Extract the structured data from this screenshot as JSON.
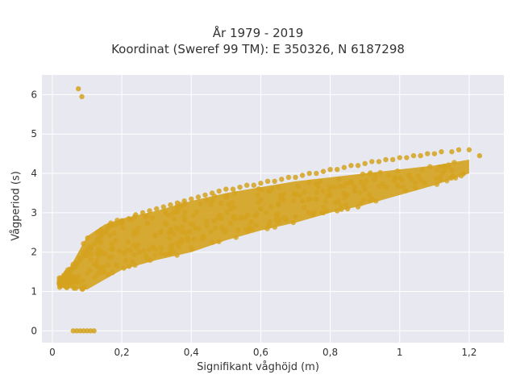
{
  "chart_data": {
    "type": "scatter",
    "title_line1": "År 1979 - 2019",
    "title_line2": "Koordinat (Sweref 99 TM): E 350326, N 6187298",
    "xlabel": "Signifikant våghöjd (m)",
    "ylabel": "Vågperiod (s)",
    "xlim": [
      -0.03,
      1.3
    ],
    "ylim": [
      -0.3,
      6.5
    ],
    "x_ticks": [
      0,
      0.2,
      0.4,
      0.6,
      0.8,
      1,
      1.2
    ],
    "x_tick_labels": [
      "0",
      "0,2",
      "0,4",
      "0,6",
      "0,8",
      "1",
      "1,2"
    ],
    "y_ticks": [
      0,
      1,
      2,
      3,
      4,
      5,
      6
    ],
    "y_tick_labels": [
      "0",
      "1",
      "2",
      "3",
      "4",
      "5",
      "6"
    ],
    "grid": true,
    "marker_color": "#d4a21e",
    "plot_background": "#e8e8f0",
    "series": [
      {
        "x": [
          0.075,
          0.085,
          0.06,
          0.07,
          0.08,
          0.09,
          0.1,
          0.11,
          0.12,
          0.02,
          0.03,
          0.04,
          0.05,
          0.06,
          0.07,
          0.08,
          0.09,
          0.1,
          0.11,
          0.12,
          0.13,
          0.14,
          0.15,
          0.16,
          0.18,
          0.2,
          0.22,
          0.24,
          0.26,
          0.28,
          0.3,
          0.32,
          0.34,
          0.36,
          0.38,
          0.4,
          0.42,
          0.44,
          0.46,
          0.48,
          0.5,
          0.52,
          0.54,
          0.56,
          0.58,
          0.6,
          0.62,
          0.64,
          0.66,
          0.68,
          0.7,
          0.72,
          0.74,
          0.76,
          0.78,
          0.8,
          0.82,
          0.84,
          0.86,
          0.88,
          0.9,
          0.92,
          0.94,
          0.96,
          0.98,
          1.0,
          1.02,
          1.04,
          1.06,
          1.08,
          1.1,
          1.12,
          1.15,
          1.17,
          1.2,
          1.23,
          0.7,
          0.75,
          0.78,
          0.82,
          0.85,
          0.88,
          0.6,
          0.65,
          0.72,
          0.76,
          0.8,
          0.84,
          0.87,
          0.9
        ],
        "y": [
          6.15,
          5.95,
          0.0,
          0.0,
          0.0,
          0.0,
          0.0,
          0.0,
          0.0,
          1.2,
          1.3,
          1.4,
          1.5,
          1.6,
          1.7,
          1.8,
          1.9,
          2.0,
          2.1,
          2.2,
          2.3,
          2.4,
          2.5,
          2.6,
          2.7,
          2.8,
          2.85,
          2.95,
          3.0,
          3.05,
          3.1,
          3.15,
          3.2,
          3.25,
          3.3,
          3.35,
          3.4,
          3.45,
          3.5,
          3.55,
          3.6,
          3.6,
          3.65,
          3.7,
          3.7,
          3.75,
          3.8,
          3.8,
          3.85,
          3.9,
          3.9,
          3.95,
          4.0,
          4.0,
          4.05,
          4.1,
          4.1,
          4.15,
          4.2,
          4.2,
          4.25,
          4.3,
          4.3,
          4.35,
          4.35,
          4.4,
          4.4,
          4.45,
          4.45,
          4.5,
          4.5,
          4.55,
          4.55,
          4.6,
          4.6,
          4.45,
          2.9,
          2.95,
          3.0,
          3.05,
          3.1,
          3.15,
          3.1,
          3.2,
          3.3,
          3.35,
          3.45,
          3.5,
          3.55,
          3.6
        ]
      },
      {
        "band_lower": [
          [
            0.02,
            1.1
          ],
          [
            0.1,
            1.05
          ],
          [
            0.15,
            1.3
          ],
          [
            0.2,
            1.55
          ],
          [
            0.3,
            1.8
          ],
          [
            0.4,
            2.0
          ],
          [
            0.5,
            2.3
          ],
          [
            0.6,
            2.55
          ],
          [
            0.7,
            2.75
          ],
          [
            0.8,
            3.0
          ],
          [
            0.9,
            3.2
          ],
          [
            1.0,
            3.45
          ],
          [
            1.1,
            3.7
          ],
          [
            1.2,
            4.0
          ]
        ],
        "band_upper": [
          [
            0.02,
            1.35
          ],
          [
            0.05,
            1.6
          ],
          [
            0.1,
            2.4
          ],
          [
            0.15,
            2.7
          ],
          [
            0.2,
            2.85
          ],
          [
            0.3,
            3.05
          ],
          [
            0.4,
            3.3
          ],
          [
            0.5,
            3.5
          ],
          [
            0.6,
            3.65
          ],
          [
            0.7,
            3.8
          ],
          [
            0.8,
            3.9
          ],
          [
            0.9,
            4.0
          ],
          [
            1.0,
            4.1
          ],
          [
            1.1,
            4.2
          ],
          [
            1.2,
            4.35
          ]
        ]
      }
    ]
  }
}
